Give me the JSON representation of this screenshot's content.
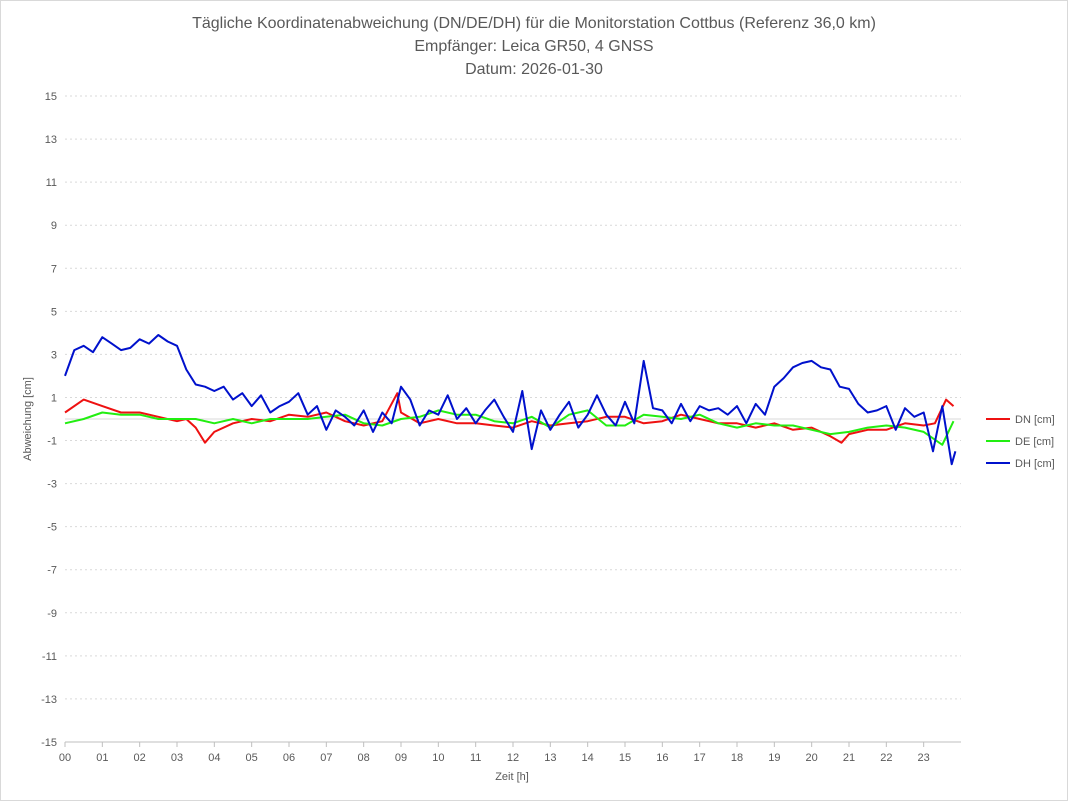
{
  "chart_data": {
    "type": "line",
    "title_lines": [
      "Tägliche Koordinatenabweichung (DN/DE/DH) für die Monitorstation Cottbus (Referenz 36,0 km)",
      "Empfänger: Leica GR50, 4 GNSS",
      "Datum: 2026-01-30"
    ],
    "xlabel": "Zeit [h]",
    "ylabel": "Abweichung [cm]",
    "xlim": [
      0,
      24
    ],
    "ylim": [
      -15,
      15
    ],
    "y_ticks": [
      15,
      13,
      11,
      9,
      7,
      5,
      3,
      1,
      -1,
      -3,
      -5,
      -7,
      -9,
      -11,
      -13,
      -15
    ],
    "x_ticks": [
      {
        "value": 0,
        "label": "00"
      },
      {
        "value": 1,
        "label": "01"
      },
      {
        "value": 2,
        "label": "02"
      },
      {
        "value": 3,
        "label": "03"
      },
      {
        "value": 4,
        "label": "04"
      },
      {
        "value": 5,
        "label": "05"
      },
      {
        "value": 6,
        "label": "06"
      },
      {
        "value": 7,
        "label": "07"
      },
      {
        "value": 8,
        "label": "08"
      },
      {
        "value": 9,
        "label": "09"
      },
      {
        "value": 10,
        "label": "10"
      },
      {
        "value": 11,
        "label": "11"
      },
      {
        "value": 12,
        "label": "12"
      },
      {
        "value": 13,
        "label": "13"
      },
      {
        "value": 14,
        "label": "14"
      },
      {
        "value": 15,
        "label": "15"
      },
      {
        "value": 16,
        "label": "16"
      },
      {
        "value": 17,
        "label": "17"
      },
      {
        "value": 18,
        "label": "18"
      },
      {
        "value": 19,
        "label": "19"
      },
      {
        "value": 20,
        "label": "20"
      },
      {
        "value": 21,
        "label": "21"
      },
      {
        "value": 22,
        "label": "22"
      },
      {
        "value": 23,
        "label": "23"
      }
    ],
    "grid": true,
    "legend_position": "right",
    "series": [
      {
        "name": "DN [cm]",
        "color": "#ee1111",
        "x": [
          0,
          0.5,
          1,
          1.5,
          2,
          2.5,
          3,
          3.25,
          3.5,
          3.75,
          4,
          4.5,
          5,
          5.5,
          6,
          6.5,
          7,
          7.5,
          8,
          8.5,
          8.9,
          9,
          9.5,
          10,
          10.5,
          11,
          11.5,
          12,
          12.5,
          13,
          13.5,
          14,
          14.5,
          15,
          15.5,
          16,
          16.5,
          17,
          17.5,
          18,
          18.5,
          19,
          19.5,
          20,
          20.5,
          20.8,
          21,
          21.5,
          22,
          22.5,
          23,
          23.3,
          23.6,
          23.8
        ],
        "values": [
          0.3,
          0.9,
          0.6,
          0.3,
          0.3,
          0.1,
          -0.1,
          0,
          -0.4,
          -1.1,
          -0.6,
          -0.2,
          0,
          -0.1,
          0.2,
          0.1,
          0.3,
          -0.1,
          -0.3,
          -0.1,
          1.2,
          0.3,
          -0.2,
          0,
          -0.2,
          -0.2,
          -0.3,
          -0.4,
          -0.1,
          -0.3,
          -0.2,
          -0.1,
          0.1,
          0.1,
          -0.2,
          -0.1,
          0.2,
          0,
          -0.2,
          -0.2,
          -0.4,
          -0.2,
          -0.5,
          -0.4,
          -0.8,
          -1.1,
          -0.7,
          -0.5,
          -0.5,
          -0.2,
          -0.3,
          -0.2,
          0.9,
          0.6
        ]
      },
      {
        "name": "DE [cm]",
        "color": "#22ee11",
        "x": [
          0,
          0.5,
          1,
          1.5,
          2,
          2.5,
          3,
          3.5,
          4,
          4.5,
          5,
          5.5,
          6,
          6.5,
          7,
          7.5,
          8,
          8.5,
          9,
          9.5,
          10,
          10.5,
          11,
          11.5,
          12,
          12.5,
          13,
          13.5,
          14,
          14.5,
          15,
          15.5,
          16,
          16.5,
          17,
          17.5,
          18,
          18.5,
          19,
          19.5,
          20,
          20.5,
          21,
          21.5,
          22,
          22.5,
          23,
          23.5,
          23.8
        ],
        "values": [
          -0.2,
          0,
          0.3,
          0.2,
          0.2,
          0,
          0,
          0,
          -0.2,
          0,
          -0.2,
          0,
          0,
          0,
          0.1,
          0.2,
          -0.2,
          -0.3,
          0,
          0.1,
          0.4,
          0.2,
          0.2,
          -0.1,
          -0.2,
          0.1,
          -0.4,
          0.2,
          0.4,
          -0.3,
          -0.3,
          0.2,
          0.1,
          0,
          0.2,
          -0.2,
          -0.4,
          -0.2,
          -0.3,
          -0.3,
          -0.5,
          -0.7,
          -0.6,
          -0.4,
          -0.3,
          -0.4,
          -0.6,
          -1.2,
          -0.1
        ]
      },
      {
        "name": "DH [cm]",
        "color": "#0011cc",
        "x": [
          0,
          0.25,
          0.5,
          0.75,
          1,
          1.25,
          1.5,
          1.75,
          2,
          2.25,
          2.5,
          2.75,
          3,
          3.25,
          3.5,
          3.75,
          4,
          4.25,
          4.5,
          4.75,
          5,
          5.25,
          5.5,
          5.75,
          6,
          6.25,
          6.5,
          6.75,
          7,
          7.25,
          7.5,
          7.75,
          8,
          8.25,
          8.5,
          8.75,
          9,
          9.25,
          9.5,
          9.75,
          10,
          10.25,
          10.5,
          10.75,
          11,
          11.25,
          11.5,
          11.75,
          12,
          12.25,
          12.5,
          12.75,
          13,
          13.25,
          13.5,
          13.75,
          14,
          14.25,
          14.5,
          14.75,
          15,
          15.25,
          15.5,
          15.75,
          16,
          16.25,
          16.5,
          16.75,
          17,
          17.25,
          17.5,
          17.75,
          18,
          18.25,
          18.5,
          18.75,
          19,
          19.25,
          19.5,
          19.75,
          20,
          20.25,
          20.5,
          20.75,
          21,
          21.25,
          21.5,
          21.75,
          22,
          22.25,
          22.5,
          22.75,
          23,
          23.25,
          23.5,
          23.75,
          23.85
        ],
        "values": [
          2,
          3.2,
          3.4,
          3.1,
          3.8,
          3.5,
          3.2,
          3.3,
          3.7,
          3.5,
          3.9,
          3.6,
          3.4,
          2.3,
          1.6,
          1.5,
          1.3,
          1.5,
          0.9,
          1.2,
          0.6,
          1.1,
          0.3,
          0.6,
          0.8,
          1.2,
          0.2,
          0.6,
          -0.5,
          0.4,
          0.1,
          -0.3,
          0.4,
          -0.6,
          0.3,
          -0.2,
          1.5,
          0.9,
          -0.3,
          0.4,
          0.2,
          1.1,
          0,
          0.5,
          -0.2,
          0.4,
          0.9,
          0.1,
          -0.6,
          1.3,
          -1.4,
          0.4,
          -0.5,
          0.2,
          0.8,
          -0.4,
          0.2,
          1.1,
          0.2,
          -0.3,
          0.8,
          -0.2,
          2.7,
          0.5,
          0.4,
          -0.2,
          0.7,
          -0.1,
          0.6,
          0.4,
          0.5,
          0.2,
          0.6,
          -0.2,
          0.7,
          0.2,
          1.5,
          1.9,
          2.4,
          2.6,
          2.7,
          2.4,
          2.3,
          1.5,
          1.4,
          0.7,
          0.3,
          0.4,
          0.6,
          -0.5,
          0.5,
          0.1,
          0.3,
          -1.5,
          0.6,
          -2.1,
          -1.5
        ]
      }
    ]
  }
}
